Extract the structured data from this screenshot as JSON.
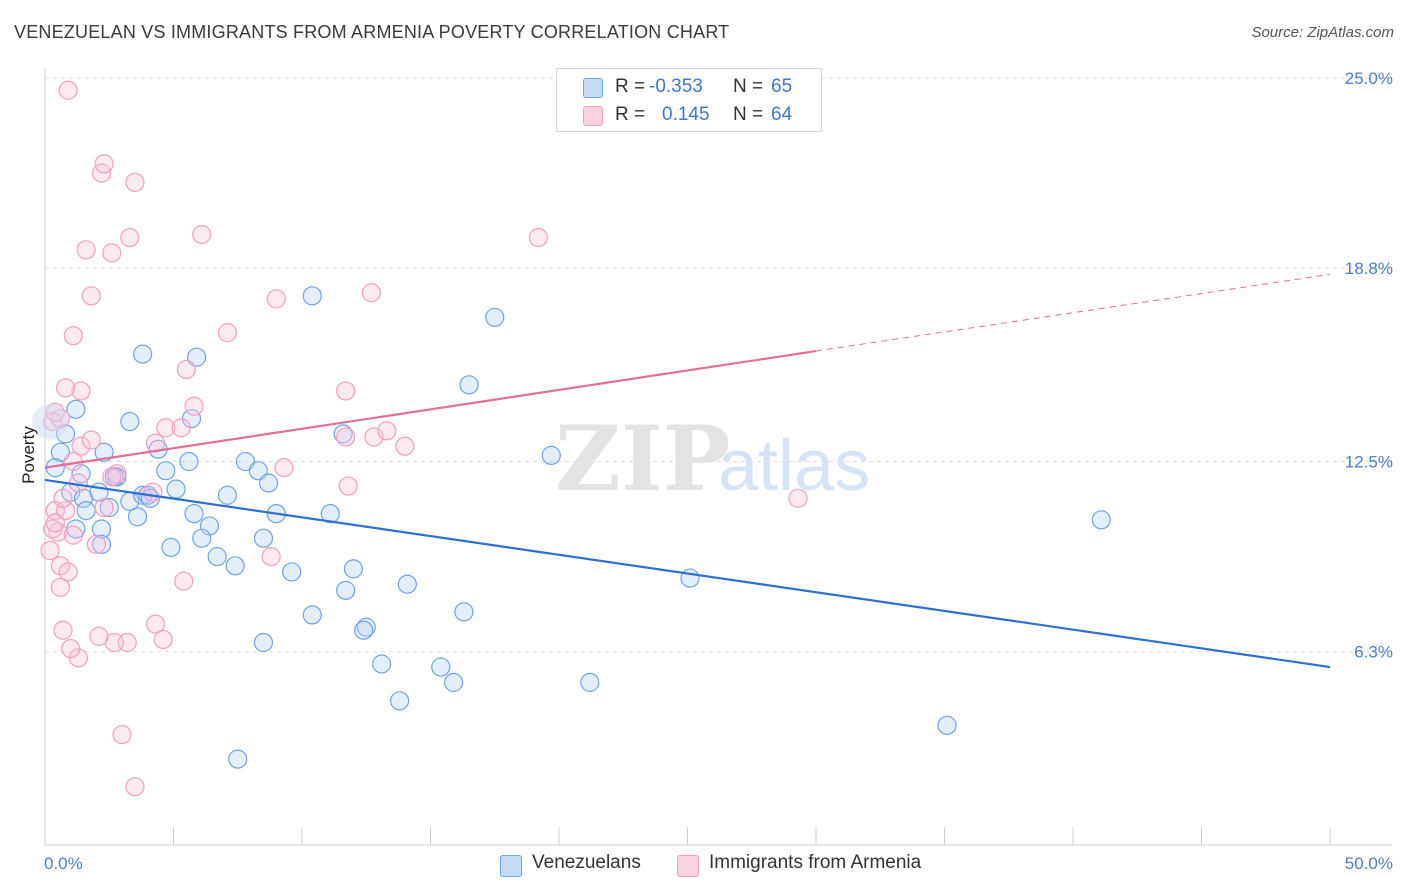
{
  "title": "VENEZUELAN VS IMMIGRANTS FROM ARMENIA POVERTY CORRELATION CHART",
  "source": "Source: ZipAtlas.com",
  "watermark": {
    "zip": "ZIP",
    "atlas": "atlas"
  },
  "legend": {
    "rows": [
      {
        "r_label": "R =",
        "r_value": "-0.353",
        "n_label": "N =",
        "n_value": "65"
      },
      {
        "r_label": "R =",
        "r_value": "0.145",
        "n_label": "N =",
        "n_value": "64"
      }
    ]
  },
  "bottom_legend": {
    "series1": "Venezuelans",
    "series2": "Immigrants from Armenia"
  },
  "chart_data": {
    "type": "scatter",
    "title": "VENEZUELAN VS IMMIGRANTS FROM ARMENIA POVERTY CORRELATION CHART",
    "xlabel": "",
    "ylabel": "Poverty",
    "xlim": [
      0,
      50
    ],
    "ylim": [
      0,
      25
    ],
    "x_tick_labels": [
      "0.0%",
      "50.0%"
    ],
    "y_ticks": [
      6.3,
      12.5,
      18.8,
      25.0
    ],
    "y_tick_labels": [
      "6.3%",
      "12.5%",
      "18.8%",
      "25.0%"
    ],
    "grid": true,
    "colors": {
      "venezuelans": "#6fa3e8",
      "armenia": "#f2a0bd",
      "blue_line": "#2f6fd0",
      "pink_line": "#e0709a"
    },
    "series": [
      {
        "name": "Venezuelans",
        "color": "#6fa3e8",
        "points": [
          [
            0.6,
            12.8
          ],
          [
            0.8,
            13.4
          ],
          [
            0.4,
            12.3
          ],
          [
            1.0,
            11.5
          ],
          [
            1.5,
            11.3
          ],
          [
            1.4,
            12.1
          ],
          [
            1.2,
            10.3
          ],
          [
            1.6,
            10.9
          ],
          [
            2.3,
            12.8
          ],
          [
            2.1,
            11.5
          ],
          [
            2.5,
            11.0
          ],
          [
            2.2,
            10.3
          ],
          [
            2.2,
            9.8
          ],
          [
            3.3,
            11.2
          ],
          [
            2.8,
            12.0
          ],
          [
            3.8,
            11.4
          ],
          [
            3.6,
            10.7
          ],
          [
            4.0,
            11.4
          ],
          [
            4.4,
            12.9
          ],
          [
            4.7,
            12.2
          ],
          [
            5.1,
            11.6
          ],
          [
            5.6,
            12.5
          ],
          [
            5.8,
            10.8
          ],
          [
            6.4,
            10.4
          ],
          [
            4.9,
            9.7
          ],
          [
            6.1,
            10.0
          ],
          [
            6.7,
            9.4
          ],
          [
            7.4,
            9.1
          ],
          [
            7.1,
            11.4
          ],
          [
            7.8,
            12.5
          ],
          [
            8.3,
            12.2
          ],
          [
            8.7,
            11.8
          ],
          [
            9.0,
            10.8
          ],
          [
            8.5,
            10.0
          ],
          [
            9.6,
            8.9
          ],
          [
            10.4,
            7.5
          ],
          [
            11.1,
            10.8
          ],
          [
            11.6,
            13.4
          ],
          [
            11.7,
            8.3
          ],
          [
            12.0,
            9.0
          ],
          [
            12.5,
            7.1
          ],
          [
            12.4,
            7.0
          ],
          [
            13.1,
            5.9
          ],
          [
            13.8,
            4.7
          ],
          [
            14.1,
            8.5
          ],
          [
            15.4,
            5.8
          ],
          [
            15.9,
            5.3
          ],
          [
            16.3,
            7.6
          ],
          [
            16.5,
            15.0
          ],
          [
            17.5,
            17.2
          ],
          [
            19.7,
            12.7
          ],
          [
            21.2,
            5.3
          ],
          [
            25.1,
            8.7
          ],
          [
            3.8,
            16.0
          ],
          [
            5.9,
            15.9
          ],
          [
            10.4,
            17.9
          ],
          [
            5.7,
            13.9
          ],
          [
            3.3,
            13.8
          ],
          [
            8.5,
            6.6
          ],
          [
            7.5,
            2.8
          ],
          [
            1.2,
            14.2
          ],
          [
            2.7,
            12.0
          ],
          [
            4.1,
            11.3
          ],
          [
            35.1,
            3.9
          ],
          [
            41.1,
            10.6
          ]
        ]
      },
      {
        "name": "Immigrants from Armenia",
        "color": "#f2a0bd",
        "points": [
          [
            0.3,
            13.8
          ],
          [
            0.6,
            13.9
          ],
          [
            0.4,
            10.9
          ],
          [
            0.5,
            10.2
          ],
          [
            0.3,
            10.3
          ],
          [
            0.2,
            9.6
          ],
          [
            0.6,
            9.1
          ],
          [
            0.9,
            8.9
          ],
          [
            0.8,
            10.9
          ],
          [
            1.1,
            10.1
          ],
          [
            1.3,
            11.8
          ],
          [
            0.7,
            11.3
          ],
          [
            1.1,
            12.5
          ],
          [
            1.4,
            13.0
          ],
          [
            1.8,
            13.2
          ],
          [
            2.0,
            9.8
          ],
          [
            2.3,
            11.0
          ],
          [
            2.8,
            12.1
          ],
          [
            2.6,
            12.0
          ],
          [
            3.2,
            6.6
          ],
          [
            2.7,
            6.6
          ],
          [
            2.1,
            6.8
          ],
          [
            1.3,
            6.1
          ],
          [
            1.0,
            6.4
          ],
          [
            0.6,
            8.4
          ],
          [
            0.7,
            7.0
          ],
          [
            0.4,
            10.5
          ],
          [
            3.0,
            3.6
          ],
          [
            3.5,
            1.9
          ],
          [
            4.3,
            7.2
          ],
          [
            4.6,
            6.7
          ],
          [
            4.3,
            13.1
          ],
          [
            4.7,
            13.6
          ],
          [
            5.3,
            13.6
          ],
          [
            5.5,
            15.5
          ],
          [
            5.8,
            14.3
          ],
          [
            5.4,
            8.6
          ],
          [
            4.2,
            11.5
          ],
          [
            6.1,
            19.9
          ],
          [
            7.1,
            16.7
          ],
          [
            8.8,
            9.4
          ],
          [
            9.0,
            17.8
          ],
          [
            9.3,
            12.3
          ],
          [
            11.8,
            11.7
          ],
          [
            11.7,
            14.8
          ],
          [
            12.8,
            13.3
          ],
          [
            13.3,
            13.5
          ],
          [
            14.0,
            13.0
          ],
          [
            12.7,
            18.0
          ],
          [
            19.2,
            19.8
          ],
          [
            11.7,
            13.3
          ],
          [
            1.8,
            17.9
          ],
          [
            1.1,
            16.6
          ],
          [
            1.6,
            19.4
          ],
          [
            2.6,
            19.3
          ],
          [
            3.3,
            19.8
          ],
          [
            3.5,
            21.6
          ],
          [
            2.2,
            21.9
          ],
          [
            2.3,
            22.2
          ],
          [
            0.9,
            24.6
          ],
          [
            1.4,
            14.8
          ],
          [
            0.8,
            14.9
          ],
          [
            0.4,
            14.1
          ],
          [
            29.3,
            11.3
          ]
        ]
      }
    ],
    "trend_lines": [
      {
        "series": "Venezuelans",
        "x": [
          0,
          50
        ],
        "y": [
          11.9,
          5.8
        ],
        "style": "solid"
      },
      {
        "series": "Immigrants from Armenia",
        "x": [
          0,
          30
        ],
        "y": [
          12.3,
          16.1
        ],
        "style": "solid"
      },
      {
        "series": "Immigrants from Armenia",
        "x": [
          30,
          50
        ],
        "y": [
          16.1,
          18.6
        ],
        "style": "dashed"
      }
    ]
  }
}
